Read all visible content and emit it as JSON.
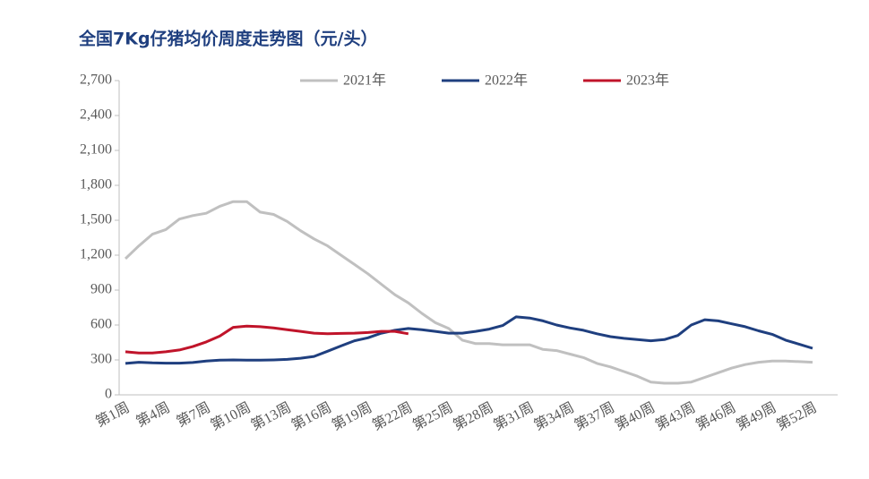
{
  "chart_data": {
    "type": "line",
    "title": "全国7Kg仔猪均价周度走势图（元/头）",
    "categories": [
      "第1周",
      null,
      null,
      "第4周",
      null,
      null,
      "第7周",
      null,
      null,
      "第10周",
      null,
      null,
      "第13周",
      null,
      null,
      "第16周",
      null,
      null,
      "第19周",
      null,
      null,
      "第22周",
      null,
      null,
      "第25周",
      null,
      null,
      "第28周",
      null,
      null,
      "第31周",
      null,
      null,
      "第34周",
      null,
      null,
      "第37周",
      null,
      null,
      "第40周",
      null,
      null,
      "第43周",
      null,
      null,
      "第46周",
      null,
      null,
      "第49周",
      null,
      null,
      "第52周"
    ],
    "series": [
      {
        "name": "2021年",
        "color": "#c0c0c0",
        "values": [
          1170,
          1280,
          1380,
          1420,
          1510,
          1540,
          1560,
          1620,
          1660,
          1660,
          1570,
          1550,
          1490,
          1410,
          1340,
          1280,
          1200,
          1120,
          1040,
          950,
          860,
          790,
          700,
          620,
          570,
          470,
          440,
          440,
          430,
          430,
          430,
          390,
          380,
          350,
          320,
          270,
          240,
          200,
          160,
          110,
          100,
          100,
          110,
          150,
          190,
          230,
          260,
          280,
          290,
          290,
          285,
          280
        ]
      },
      {
        "name": "2022年",
        "color": "#1f3f7f",
        "values": [
          270,
          280,
          275,
          272,
          272,
          278,
          290,
          298,
          300,
          298,
          298,
          300,
          305,
          315,
          330,
          375,
          420,
          465,
          490,
          530,
          555,
          570,
          560,
          545,
          530,
          530,
          545,
          565,
          595,
          670,
          660,
          635,
          600,
          575,
          555,
          525,
          500,
          485,
          475,
          465,
          475,
          510,
          600,
          645,
          635,
          610,
          585,
          550,
          520,
          470,
          435,
          400
        ]
      },
      {
        "name": "2023年",
        "color": "#c0142a",
        "values": [
          370,
          360,
          360,
          370,
          385,
          415,
          455,
          505,
          580,
          590,
          585,
          575,
          560,
          545,
          530,
          525,
          528,
          530,
          535,
          545,
          545,
          525,
          null,
          null,
          null,
          null,
          null,
          null,
          null,
          null,
          null,
          null,
          null,
          null,
          null,
          null,
          null,
          null,
          null,
          null,
          null,
          null,
          null,
          null,
          null,
          null,
          null,
          null,
          null,
          null,
          null,
          null
        ]
      }
    ],
    "ylim": [
      0,
      2700
    ],
    "yticks": [
      0,
      300,
      600,
      900,
      {
        "value": 1200,
        "label": "1,200"
      },
      {
        "value": 1500,
        "label": "1,500"
      },
      {
        "value": 1800,
        "label": "1,800"
      },
      {
        "value": 2100,
        "label": "2,100"
      },
      {
        "value": 2400,
        "label": "2,400"
      },
      {
        "value": 2700,
        "label": "2,700"
      }
    ],
    "grid": false
  }
}
